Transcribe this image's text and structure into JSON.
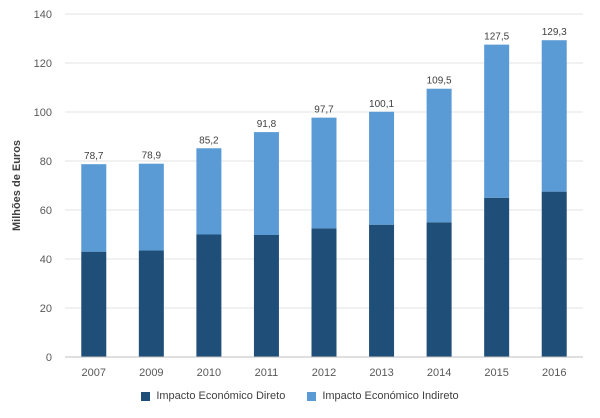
{
  "chart_data": {
    "type": "bar",
    "stacked": true,
    "title": "",
    "xlabel": "",
    "ylabel": "Milhões de Euros",
    "ylim": [
      0,
      140
    ],
    "yticks": [
      0,
      20,
      40,
      60,
      80,
      100,
      120,
      140
    ],
    "grid": true,
    "legend_position": "bottom",
    "categories": [
      "2007",
      "2009",
      "2010",
      "2011",
      "2012",
      "2013",
      "2014",
      "2015",
      "2016"
    ],
    "series": [
      {
        "name": "Impacto Económico Direto",
        "color": "#1f4e79",
        "values": [
          43.0,
          43.5,
          50.0,
          49.8,
          52.5,
          54.0,
          55.0,
          65.0,
          67.5
        ]
      },
      {
        "name": "Impacto Económico Indireto",
        "color": "#5b9bd5",
        "values": [
          35.7,
          35.4,
          35.2,
          42.0,
          45.2,
          46.1,
          54.5,
          62.5,
          61.8
        ]
      }
    ],
    "totals": [
      78.7,
      78.9,
      85.2,
      91.8,
      97.7,
      100.1,
      109.5,
      127.5,
      129.3
    ],
    "total_labels": [
      "78,7",
      "78,9",
      "85,2",
      "91,8",
      "97,7",
      "100,1",
      "109,5",
      "127,5",
      "129,3"
    ]
  }
}
